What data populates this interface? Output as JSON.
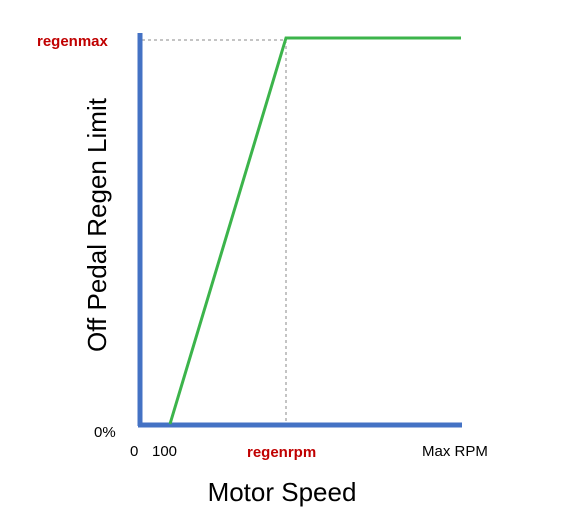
{
  "chart_data": {
    "type": "line",
    "xlabel": "Motor Speed",
    "ylabel": "Off Pedal Regen Limit",
    "x_ticks": [
      "0",
      "100",
      "regenrpm",
      "Max RPM"
    ],
    "y_ticks": [
      "0%",
      "regenmax"
    ],
    "series": [
      {
        "x": [
          100,
          "regenrpm",
          "Max RPM"
        ],
        "y": [
          "0%",
          "regenmax",
          "regenmax"
        ]
      }
    ],
    "grid": false,
    "colors": {
      "axis": "#4472C4",
      "line": "#3CB44B",
      "highlight": "#C00000",
      "guide": "#8a8a8a"
    }
  }
}
